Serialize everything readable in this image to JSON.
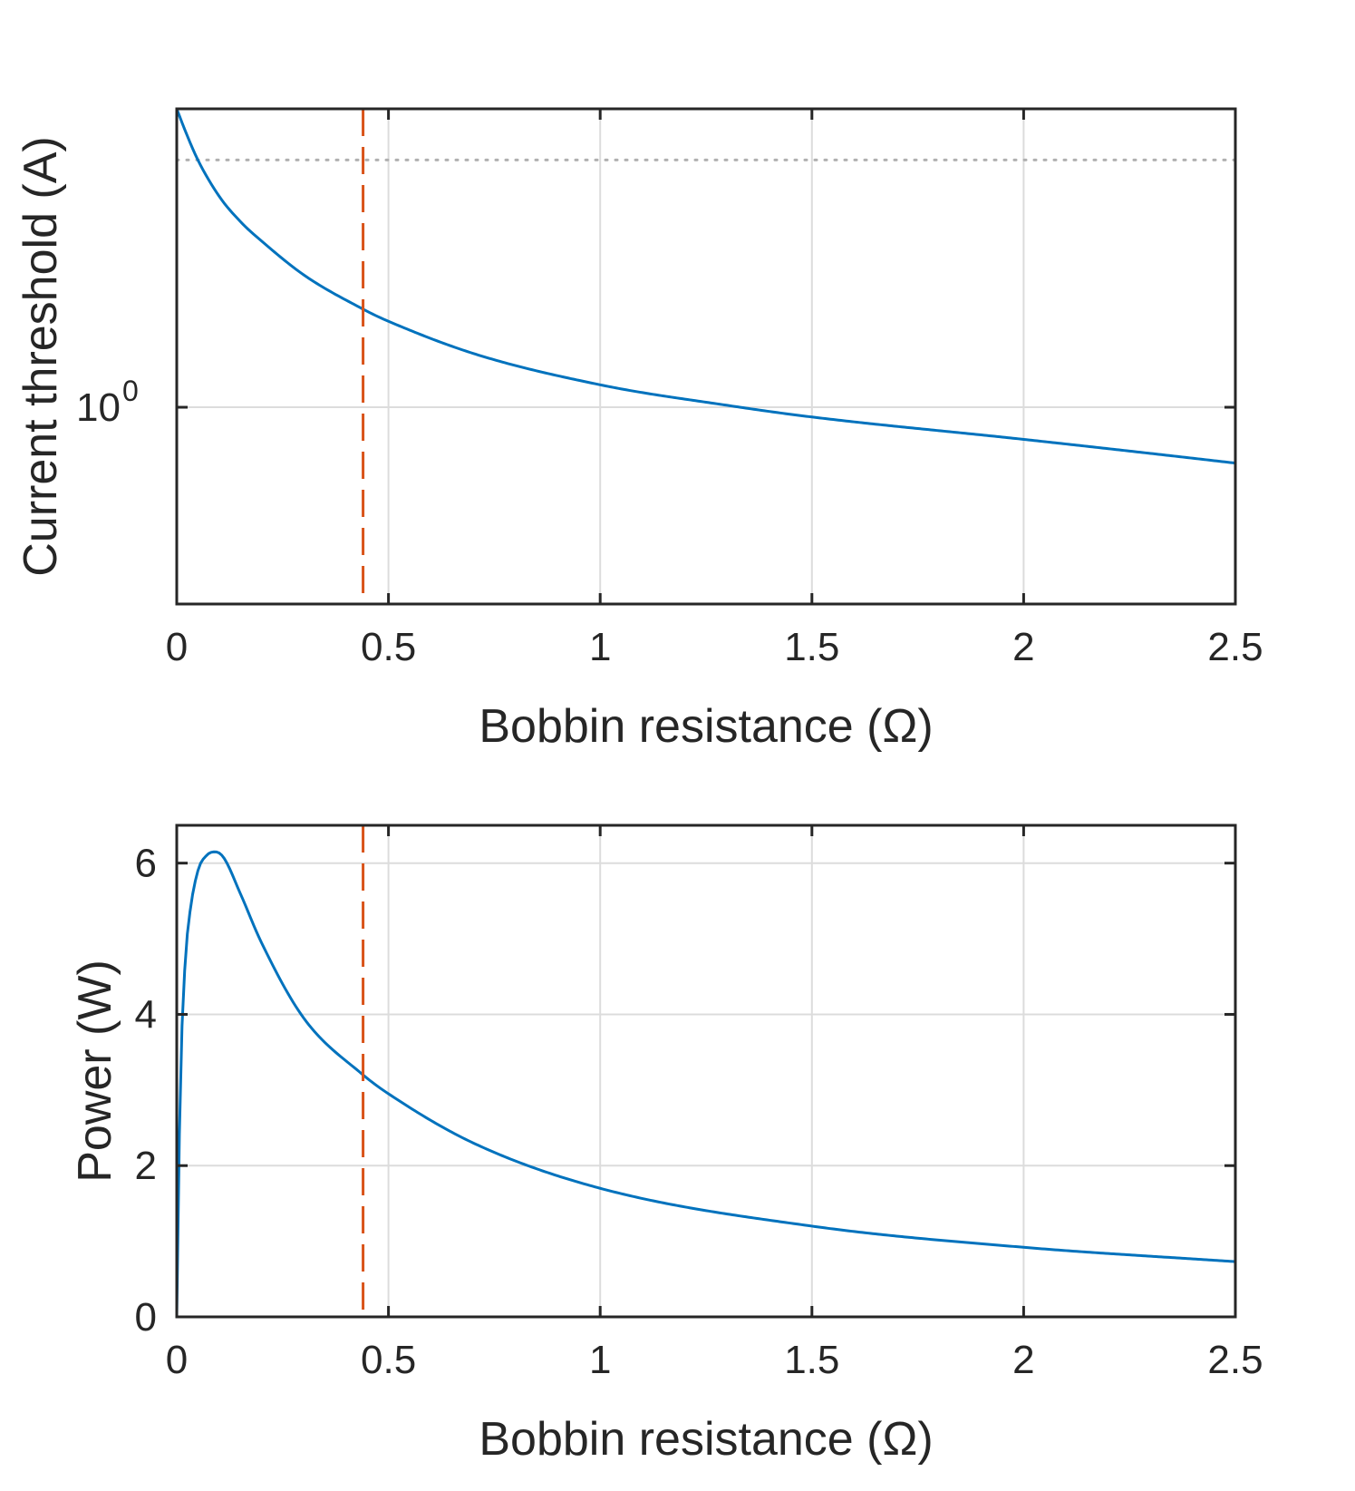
{
  "chart_data": [
    {
      "type": "line",
      "xlabel": "Bobbin resistance (Ω)",
      "ylabel": "Current threshold (A)",
      "yscale": "log",
      "xlim": [
        0,
        2.5
      ],
      "ylim": [
        0.6,
        2.17
      ],
      "xticks": [
        "0",
        "0.5",
        "1",
        "1.5",
        "2",
        "2.5"
      ],
      "xtick_values": [
        0,
        0.5,
        1,
        1.5,
        2,
        2.5
      ],
      "yticks": [
        {
          "value": 1,
          "base": "10",
          "exponent": "0"
        }
      ],
      "grid": true,
      "series": [
        {
          "color": "#0072BD",
          "x": [
            0.0,
            0.02,
            0.05,
            0.1,
            0.15,
            0.2,
            0.3,
            0.44,
            0.5,
            0.7,
            1.0,
            1.3,
            1.5,
            2.0,
            2.5
          ],
          "y": [
            2.17,
            2.05,
            1.9,
            1.73,
            1.62,
            1.54,
            1.41,
            1.29,
            1.25,
            1.15,
            1.06,
            1.005,
            0.975,
            0.92,
            0.865
          ]
        }
      ],
      "vline": {
        "x": 0.44,
        "color": "#D95319",
        "style": "dashed"
      },
      "hline": {
        "y": 1.9,
        "color": "#b0b0b0",
        "style": "dotted"
      }
    },
    {
      "type": "line",
      "xlabel": "Bobbin resistance (Ω)",
      "ylabel": "Power (W)",
      "xlim": [
        0,
        2.5
      ],
      "ylim": [
        0,
        6.5
      ],
      "xticks": [
        "0",
        "0.5",
        "1",
        "1.5",
        "2",
        "2.5"
      ],
      "xtick_values": [
        0,
        0.5,
        1,
        1.5,
        2,
        2.5
      ],
      "yticks": [
        "0",
        "2",
        "4",
        "6"
      ],
      "ytick_values": [
        0,
        2,
        4,
        6
      ],
      "grid": true,
      "series": [
        {
          "color": "#0072BD",
          "x": [
            0.0,
            0.005,
            0.01,
            0.02,
            0.03,
            0.05,
            0.07,
            0.09,
            0.11,
            0.15,
            0.2,
            0.3,
            0.44,
            0.5,
            0.7,
            1.0,
            1.5,
            2.0,
            2.5
          ],
          "y": [
            0.0,
            2.0,
            3.4,
            4.7,
            5.3,
            5.9,
            6.1,
            6.15,
            6.08,
            5.6,
            4.95,
            3.95,
            3.2,
            2.95,
            2.3,
            1.7,
            1.2,
            0.92,
            0.73
          ]
        }
      ],
      "vline": {
        "x": 0.44,
        "color": "#D95319",
        "style": "dashed"
      }
    }
  ]
}
